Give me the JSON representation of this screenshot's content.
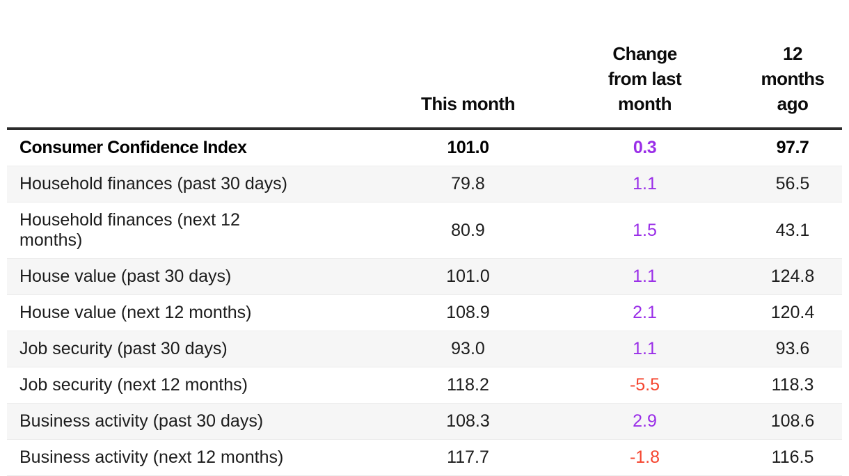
{
  "colors": {
    "positive": "#9a2ee8",
    "negative": "#f5452f",
    "header_rule": "#2b2b2b",
    "row_divider": "#ececec",
    "row_alt_bg": "#f6f6f6",
    "text": "#1c1c1c"
  },
  "table": {
    "columns": [
      "",
      "This month",
      "Change from last month",
      "12 months ago"
    ],
    "rows": [
      {
        "label": "Consumer Confidence Index",
        "this_month": "101.0",
        "change": "0.3",
        "year_ago": "97.7"
      },
      {
        "label": "Household finances (past 30 days)",
        "this_month": "79.8",
        "change": "1.1",
        "year_ago": "56.5"
      },
      {
        "label": "Household finances (next 12 months)",
        "this_month": "80.9",
        "change": "1.5",
        "year_ago": "43.1"
      },
      {
        "label": "House value (past 30 days)",
        "this_month": "101.0",
        "change": "1.1",
        "year_ago": "124.8"
      },
      {
        "label": "House value (next 12 months)",
        "this_month": "108.9",
        "change": "2.1",
        "year_ago": "120.4"
      },
      {
        "label": "Job security (past 30 days)",
        "this_month": "93.0",
        "change": "1.1",
        "year_ago": "93.6"
      },
      {
        "label": "Job security (next 12 months)",
        "this_month": "118.2",
        "change": "-5.5",
        "year_ago": "118.3"
      },
      {
        "label": "Business activity (past 30 days)",
        "this_month": "108.3",
        "change": "2.9",
        "year_ago": "108.6"
      },
      {
        "label": "Business activity (next 12 months)",
        "this_month": "117.7",
        "change": "-1.8",
        "year_ago": "116.5"
      }
    ]
  },
  "chart_data": {
    "type": "table",
    "columns": [
      "",
      "This month",
      "Change from last month",
      "12 months ago"
    ],
    "rows": [
      [
        "Consumer Confidence Index",
        101.0,
        0.3,
        97.7
      ],
      [
        "Household finances (past 30 days)",
        79.8,
        1.1,
        56.5
      ],
      [
        "Household finances (next 12 months)",
        80.9,
        1.5,
        43.1
      ],
      [
        "House value (past 30 days)",
        101.0,
        1.1,
        124.8
      ],
      [
        "House value (next 12 months)",
        108.9,
        2.1,
        120.4
      ],
      [
        "Job security (past 30 days)",
        93.0,
        1.1,
        93.6
      ],
      [
        "Job security (next 12 months)",
        118.2,
        -5.5,
        118.3
      ],
      [
        "Business activity (past 30 days)",
        108.3,
        2.9,
        108.6
      ],
      [
        "Business activity (next 12 months)",
        117.7,
        -1.8,
        116.5
      ]
    ]
  }
}
